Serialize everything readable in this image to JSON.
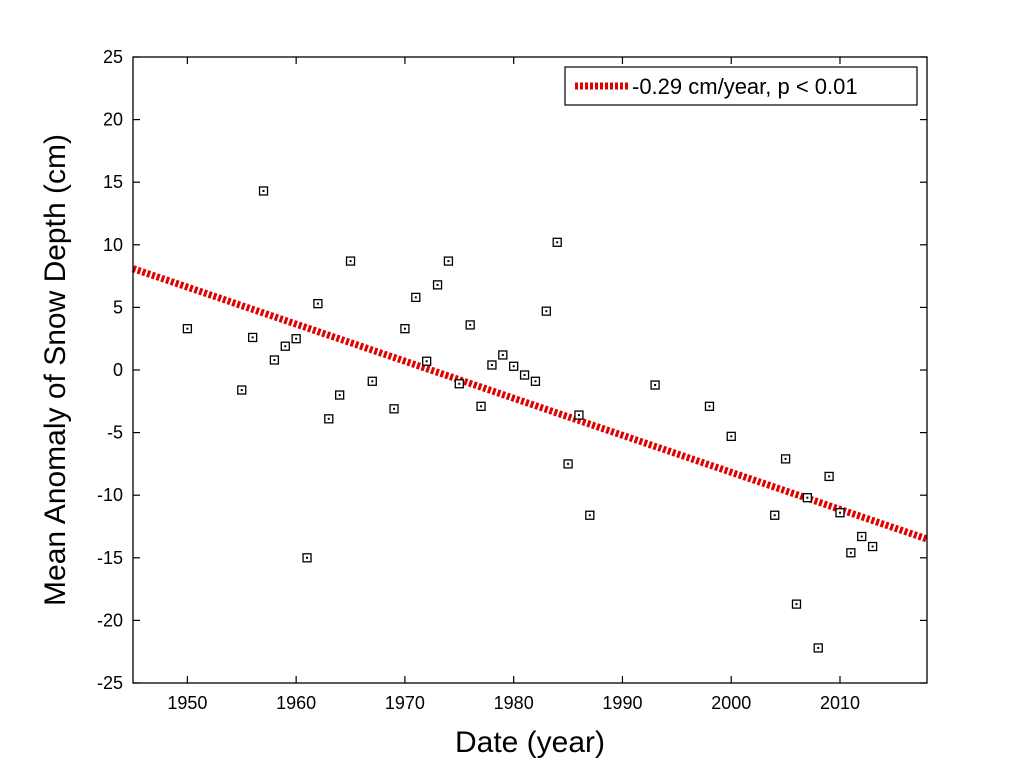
{
  "chart_data": {
    "type": "scatter",
    "xlabel": "Date (year)",
    "ylabel": "Mean Anomaly of Snow Depth (cm)",
    "xlim": [
      1945,
      2018
    ],
    "ylim": [
      -25,
      25
    ],
    "xticks": [
      1950,
      1960,
      1970,
      1980,
      1990,
      2000,
      2010
    ],
    "yticks": [
      -25,
      -20,
      -15,
      -10,
      -5,
      0,
      5,
      10,
      15,
      20,
      25
    ],
    "grid": false,
    "legend_position": "top-right",
    "colors": {
      "trend": "#e00000",
      "marker": "#000000"
    },
    "points": [
      [
        1950,
        3.3
      ],
      [
        1955,
        -1.6
      ],
      [
        1956,
        2.6
      ],
      [
        1957,
        14.3
      ],
      [
        1958,
        0.8
      ],
      [
        1959,
        1.9
      ],
      [
        1960,
        2.5
      ],
      [
        1961,
        -15.0
      ],
      [
        1962,
        5.3
      ],
      [
        1963,
        -3.9
      ],
      [
        1964,
        -2.0
      ],
      [
        1965,
        8.7
      ],
      [
        1967,
        -0.9
      ],
      [
        1969,
        -3.1
      ],
      [
        1970,
        3.3
      ],
      [
        1971,
        5.8
      ],
      [
        1972,
        0.7
      ],
      [
        1973,
        6.8
      ],
      [
        1974,
        8.7
      ],
      [
        1975,
        -1.1
      ],
      [
        1976,
        3.6
      ],
      [
        1977,
        -2.9
      ],
      [
        1978,
        0.4
      ],
      [
        1979,
        1.2
      ],
      [
        1980,
        0.3
      ],
      [
        1981,
        -0.4
      ],
      [
        1982,
        -0.9
      ],
      [
        1983,
        4.7
      ],
      [
        1984,
        10.2
      ],
      [
        1985,
        -7.5
      ],
      [
        1986,
        -3.6
      ],
      [
        1987,
        -11.6
      ],
      [
        1993,
        -1.2
      ],
      [
        1998,
        -2.9
      ],
      [
        2000,
        -5.3
      ],
      [
        2004,
        -11.6
      ],
      [
        2005,
        -7.1
      ],
      [
        2006,
        -18.7
      ],
      [
        2007,
        -10.2
      ],
      [
        2008,
        -22.2
      ],
      [
        2009,
        -8.5
      ],
      [
        2010,
        -11.4
      ],
      [
        2011,
        -14.6
      ],
      [
        2012,
        -13.3
      ],
      [
        2013,
        -14.1
      ]
    ],
    "trend": {
      "name": "-0.29 cm/year, p < 0.01",
      "x": [
        1945,
        2018
      ],
      "y": [
        8.1,
        -13.5
      ]
    }
  }
}
